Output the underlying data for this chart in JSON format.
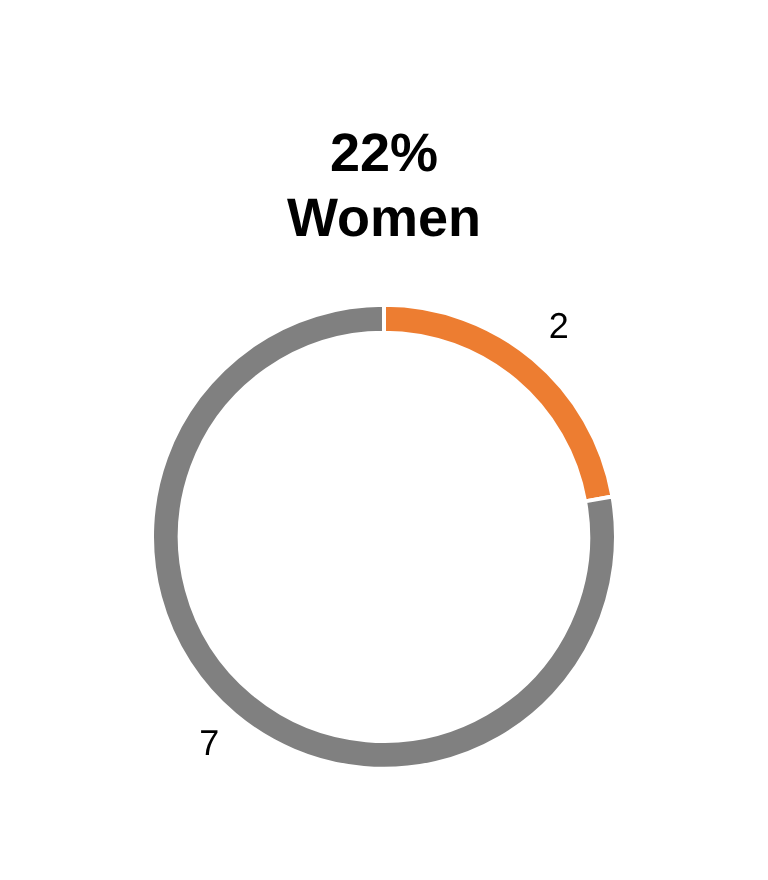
{
  "chart_data": {
    "type": "donut",
    "title": "22%\nWomen",
    "categories": [
      null,
      null
    ],
    "values": [
      2,
      7
    ],
    "colors": [
      "#ed7d31",
      "#808080"
    ],
    "data_labels": true,
    "legend": false
  }
}
